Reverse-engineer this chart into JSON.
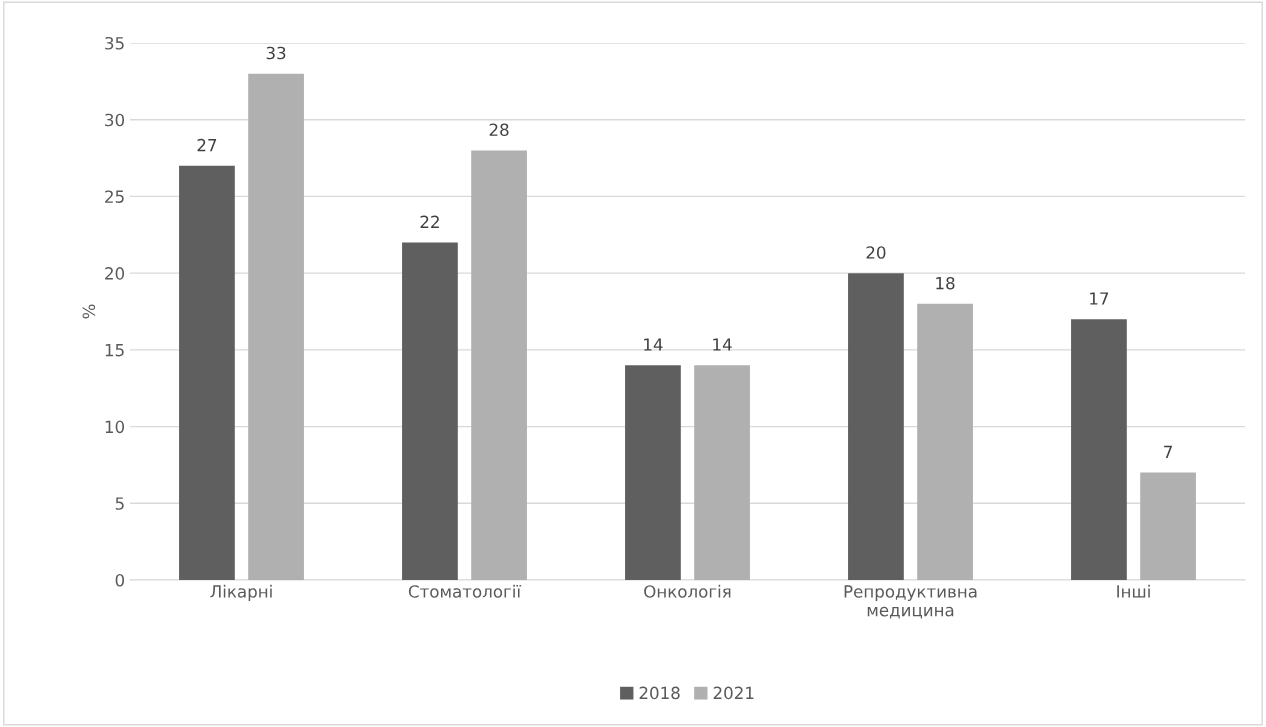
{
  "chart_data": {
    "type": "bar",
    "ylabel": "%",
    "categories": [
      "Лікарні",
      "Стоматології",
      "Онкологія",
      "Репродуктивна\nмедицина",
      "Інші"
    ],
    "series": [
      {
        "name": "2018",
        "color": "#5f5f5f",
        "values": [
          27,
          22,
          14,
          20,
          17
        ]
      },
      {
        "name": "2021",
        "color": "#b0b0b0",
        "values": [
          33,
          28,
          14,
          18,
          7
        ]
      }
    ],
    "ylim": [
      0,
      35
    ],
    "yticks": [
      0,
      5,
      10,
      15,
      20,
      25,
      30,
      35
    ],
    "grid": "y",
    "legend": "bottom",
    "data_labels": true
  }
}
